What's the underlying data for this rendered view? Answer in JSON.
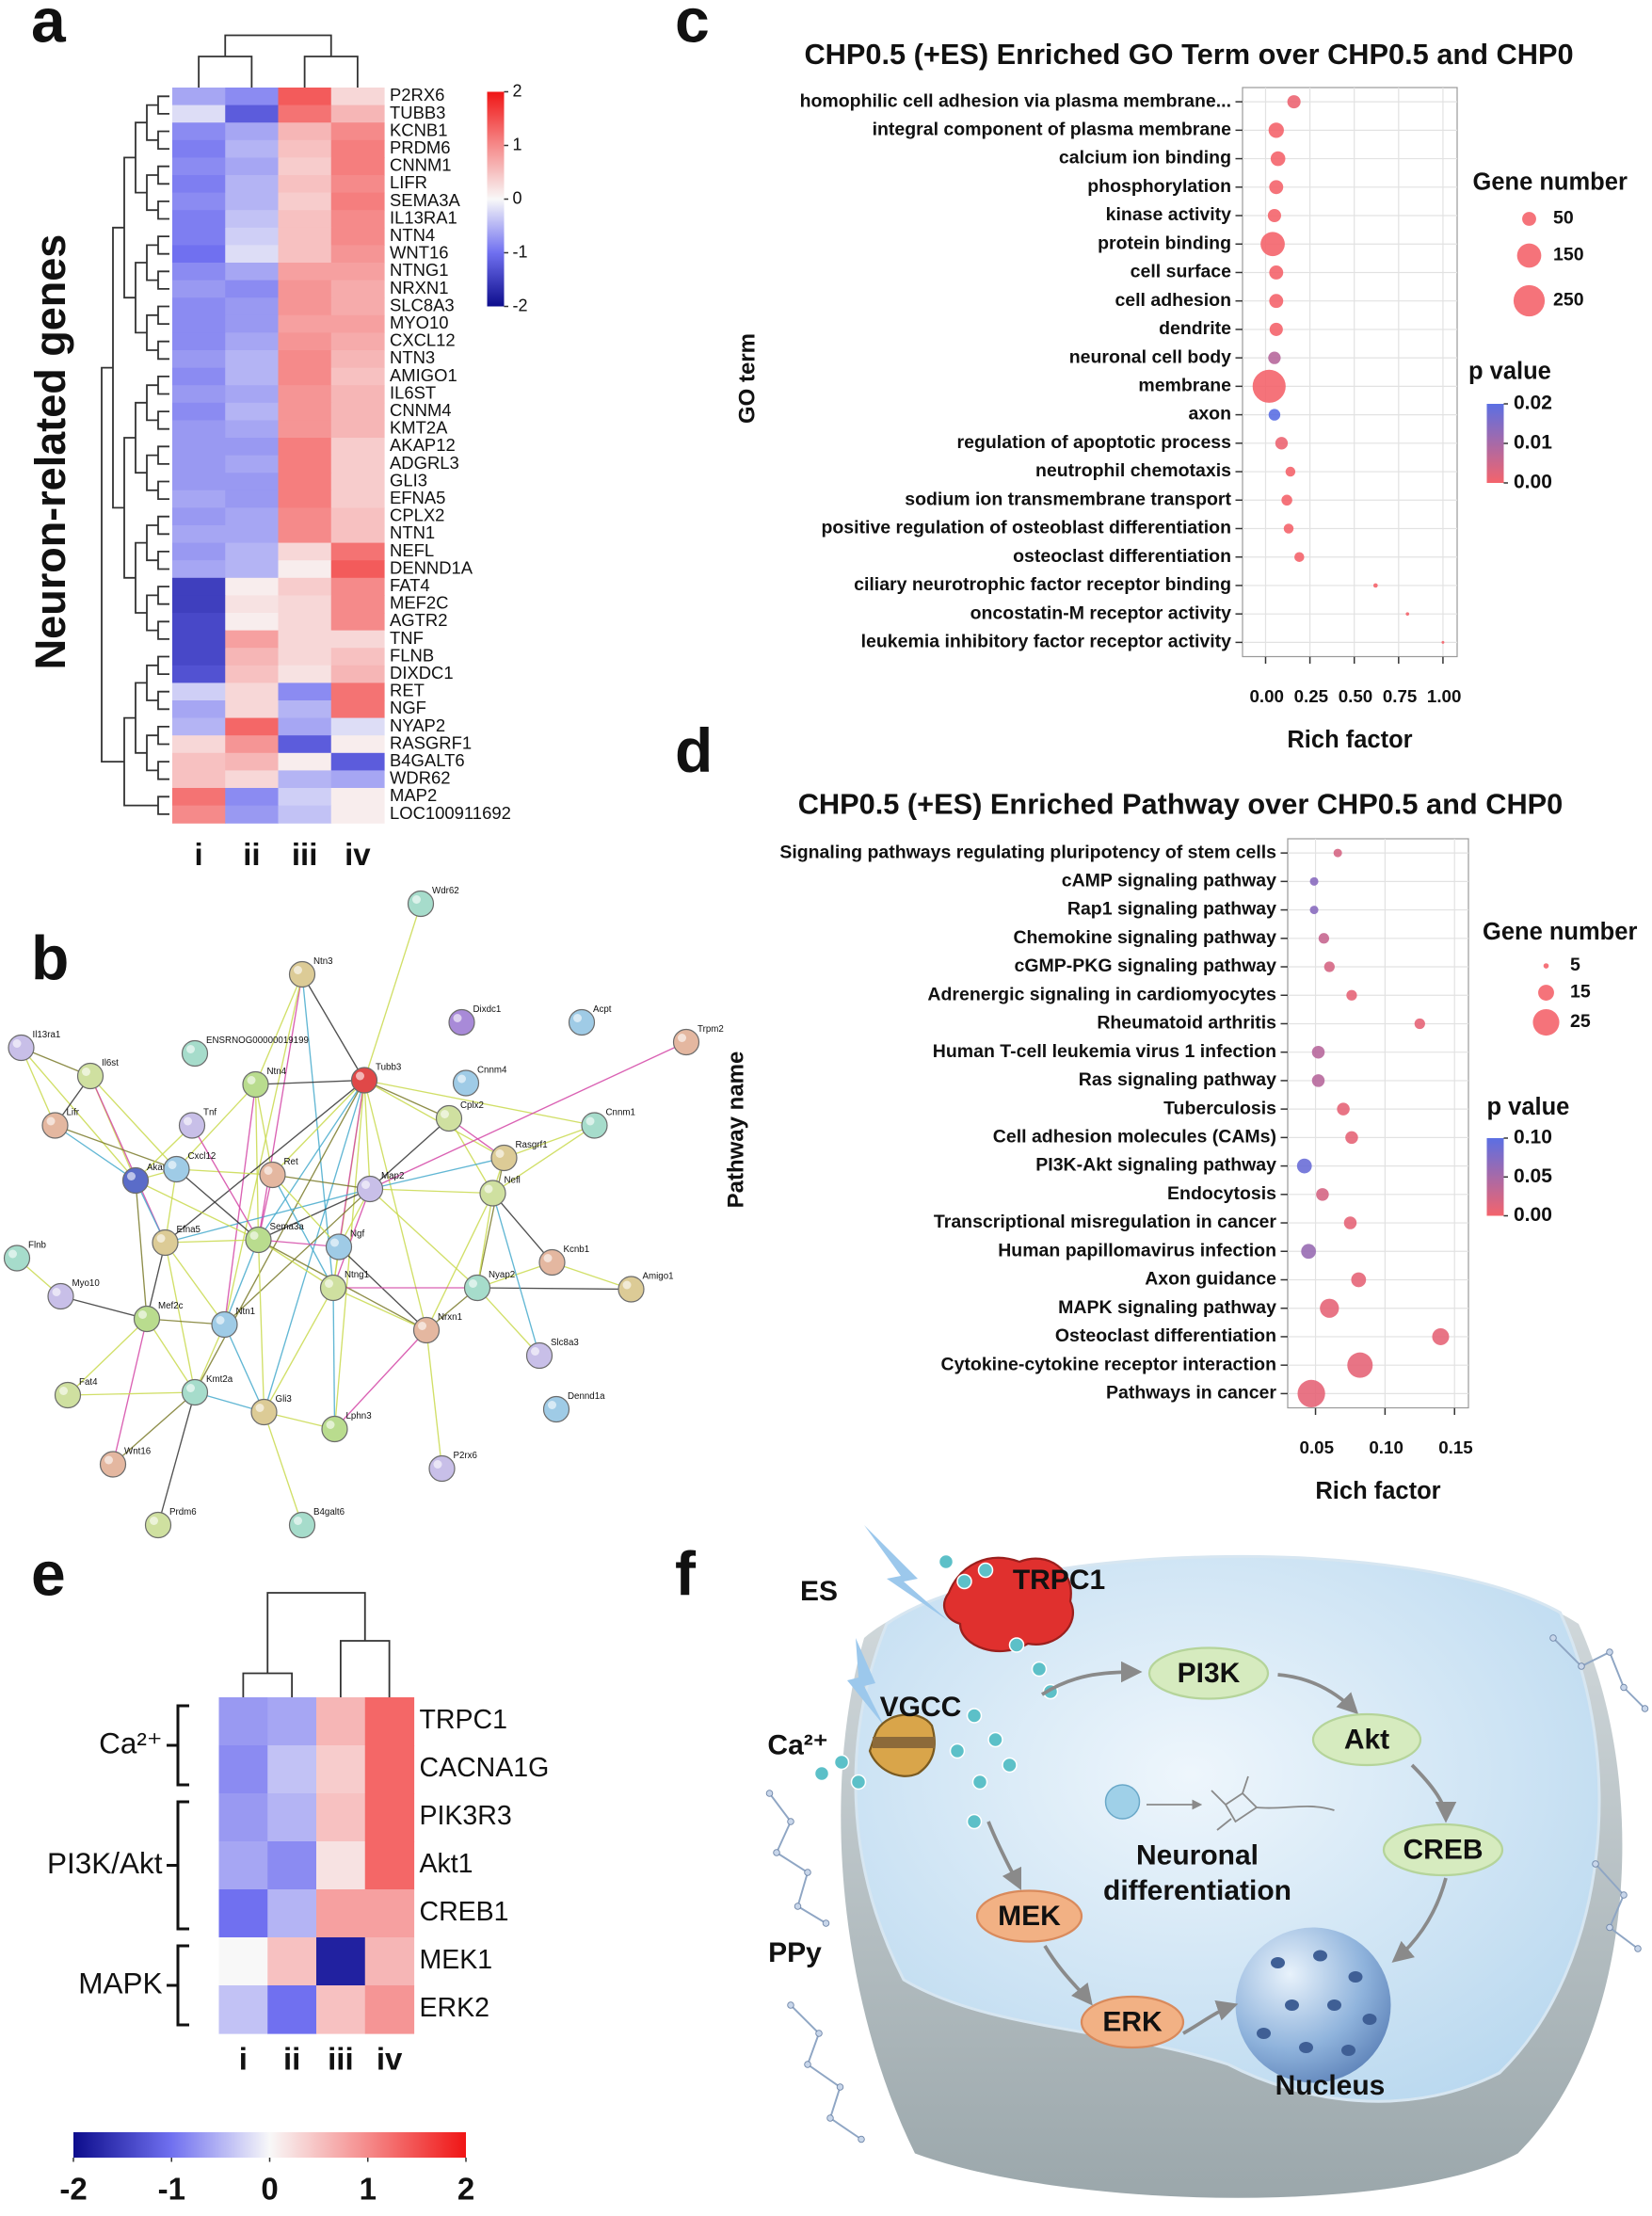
{
  "panel_labels": [
    "a",
    "b",
    "c",
    "d",
    "e",
    "f"
  ],
  "chart_data": [
    {
      "type": "heatmap",
      "ylabel": "Neuron-related genes",
      "categories": [
        "P2RX6",
        "TUBB3",
        "KCNB1",
        "PRDM6",
        "CNNM1",
        "LIFR",
        "SEMA3A",
        "IL13RA1",
        "NTN4",
        "WNT16",
        "NTNG1",
        "NRXN1",
        "SLC8A3",
        "MYO10",
        "CXCL12",
        "NTN3",
        "AMIGO1",
        "IL6ST",
        "CNNM4",
        "KMT2A",
        "AKAP12",
        "ADGRL3",
        "GLI3",
        "EFNA5",
        "CPLX2",
        "NTN1",
        "NEFL",
        "DENND1A",
        "FAT4",
        "MEF2C",
        "AGTR2",
        "TNF",
        "FLNB",
        "DIXDC1",
        "RET",
        "NGF",
        "NYAP2",
        "RASGRF1",
        "B4GALT6",
        "WDR62",
        "MAP2",
        "LOC100911692"
      ],
      "columns": [
        "i",
        "ii",
        "iii",
        "iv"
      ],
      "values": [
        [
          -0.6,
          -0.8,
          1.4,
          0.3
        ],
        [
          -0.2,
          -1.2,
          1.2,
          0.6
        ],
        [
          -0.8,
          -0.6,
          0.6,
          1.0
        ],
        [
          -0.9,
          -0.5,
          0.5,
          1.1
        ],
        [
          -0.8,
          -0.6,
          0.4,
          1.1
        ],
        [
          -0.9,
          -0.5,
          0.5,
          1.0
        ],
        [
          -0.8,
          -0.5,
          0.4,
          1.1
        ],
        [
          -0.9,
          -0.4,
          0.5,
          1.0
        ],
        [
          -0.9,
          -0.3,
          0.5,
          1.0
        ],
        [
          -1.0,
          -0.2,
          0.5,
          0.9
        ],
        [
          -0.8,
          -0.6,
          0.8,
          0.8
        ],
        [
          -0.7,
          -0.8,
          0.9,
          0.7
        ],
        [
          -0.8,
          -0.7,
          0.9,
          0.7
        ],
        [
          -0.8,
          -0.7,
          0.8,
          0.8
        ],
        [
          -0.8,
          -0.6,
          0.9,
          0.7
        ],
        [
          -0.7,
          -0.5,
          1.0,
          0.6
        ],
        [
          -0.8,
          -0.5,
          1.0,
          0.5
        ],
        [
          -0.7,
          -0.6,
          0.9,
          0.6
        ],
        [
          -0.8,
          -0.5,
          0.9,
          0.6
        ],
        [
          -0.7,
          -0.6,
          0.9,
          0.6
        ],
        [
          -0.7,
          -0.7,
          1.1,
          0.4
        ],
        [
          -0.7,
          -0.6,
          1.1,
          0.4
        ],
        [
          -0.7,
          -0.7,
          1.1,
          0.4
        ],
        [
          -0.6,
          -0.7,
          1.1,
          0.4
        ],
        [
          -0.7,
          -0.6,
          1.0,
          0.5
        ],
        [
          -0.6,
          -0.6,
          1.0,
          0.5
        ],
        [
          -0.7,
          -0.5,
          0.3,
          1.2
        ],
        [
          -0.6,
          -0.5,
          0.1,
          1.4
        ],
        [
          -1.5,
          0.1,
          0.4,
          1.0
        ],
        [
          -1.5,
          0.2,
          0.3,
          1.0
        ],
        [
          -1.4,
          0.1,
          0.3,
          1.0
        ],
        [
          -1.4,
          0.8,
          0.3,
          0.3
        ],
        [
          -1.4,
          0.6,
          0.3,
          0.5
        ],
        [
          -1.3,
          0.5,
          0.2,
          0.6
        ],
        [
          -0.3,
          0.3,
          -0.8,
          1.2
        ],
        [
          -0.6,
          0.3,
          -0.5,
          1.2
        ],
        [
          -0.5,
          1.3,
          -0.6,
          -0.2
        ],
        [
          0.3,
          0.9,
          -1.2,
          0.1
        ],
        [
          0.5,
          0.6,
          0.1,
          -1.2
        ],
        [
          0.5,
          0.3,
          -0.5,
          -0.6
        ],
        [
          1.2,
          -0.8,
          -0.3,
          0.1
        ],
        [
          1.0,
          -0.7,
          -0.4,
          0.1
        ]
      ],
      "zlim": [
        -2,
        2
      ],
      "zticks": [
        2,
        1,
        0,
        -1,
        -2
      ],
      "colors": [
        "#0d0d8c",
        "#7070f0",
        "#f8f8f8",
        "#f58a8a",
        "#f01515"
      ]
    },
    {
      "type": "dot",
      "title": "CHP0.5 (+ES) Enriched GO Term over CHP0.5 and CHP0",
      "xlabel": "Rich factor",
      "ylabel": "GO term",
      "categories": [
        "homophilic cell adhesion via plasma membrane...",
        "integral component of plasma membrane",
        "calcium ion binding",
        "phosphorylation",
        "kinase activity",
        "protein binding",
        "cell surface",
        "cell adhesion",
        "dendrite",
        "neuronal cell body",
        "membrane",
        "axon",
        "regulation of apoptotic process",
        "neutrophil chemotaxis",
        "sodium ion transmembrane transport",
        "positive regulation of osteoblast differentiation",
        "osteoclast differentiation",
        "ciliary neurotrophic factor receptor binding",
        "oncostatin-M receptor activity",
        "leukemia inhibitory factor receptor activity"
      ],
      "values": [
        0.16,
        0.06,
        0.07,
        0.06,
        0.05,
        0.04,
        0.06,
        0.06,
        0.06,
        0.05,
        0.02,
        0.05,
        0.09,
        0.14,
        0.12,
        0.13,
        0.19,
        0.62,
        0.8,
        1.0
      ],
      "sizes": [
        45,
        60,
        55,
        50,
        45,
        150,
        50,
        50,
        45,
        40,
        280,
        35,
        40,
        25,
        30,
        25,
        25,
        5,
        3,
        2
      ],
      "pvalues": [
        0.001,
        0,
        0,
        0,
        0,
        0,
        0,
        0,
        0,
        0.008,
        0,
        0.02,
        0.001,
        0,
        0,
        0,
        0,
        0,
        0,
        0
      ],
      "xlim": [
        -0.13,
        1.08
      ],
      "xticks": [
        {
          "value": 0,
          "label": "0.00"
        },
        0.25,
        {
          "value": 0.5,
          "label": "0.50"
        },
        0.75,
        {
          "value": 1,
          "label": "1.00"
        }
      ],
      "grid": true,
      "size_legend": {
        "title": "Gene number",
        "values": [
          50,
          150,
          250
        ]
      },
      "color_legend": {
        "title": "p value",
        "lim": [
          0,
          0.02
        ],
        "ticks": [
          0.02,
          0.01,
          {
            "value": 0,
            "label": "0.00"
          }
        ],
        "colors": [
          "#f4646c",
          "#5b6fe3"
        ]
      }
    },
    {
      "type": "dot",
      "title": "CHP0.5 (+ES) Enriched Pathway over CHP0.5 and CHP0",
      "xlabel": "Rich factor",
      "ylabel": "Pathway name",
      "categories": [
        "Signaling pathways regulating pluripotency of stem cells",
        "cAMP signaling pathway",
        "Rap1 signaling pathway",
        "Chemokine signaling pathway",
        "cGMP-PKG signaling pathway",
        "Adrenergic signaling in cardiomyocytes",
        "Rheumatoid arthritis",
        "Human T-cell leukemia virus 1 infection",
        "Ras signaling pathway",
        "Tuberculosis",
        "Cell adhesion molecules (CAMs)",
        "PI3K-Akt signaling pathway",
        "Endocytosis",
        "Transcriptional misregulation in cancer",
        "Human papillomavirus infection",
        "Axon guidance",
        "MAPK signaling pathway",
        "Osteoclast differentiation",
        "Cytokine-cytokine receptor interaction",
        "Pathways in cancer"
      ],
      "values": [
        0.066,
        0.049,
        0.049,
        0.056,
        0.06,
        0.076,
        0.125,
        0.052,
        0.052,
        0.07,
        0.076,
        0.042,
        0.055,
        0.075,
        0.045,
        0.081,
        0.06,
        0.14,
        0.082,
        0.047
      ],
      "sizes": [
        8,
        8,
        8,
        10,
        10,
        10,
        10,
        12,
        12,
        12,
        12,
        14,
        12,
        12,
        14,
        14,
        18,
        16,
        24,
        26
      ],
      "pvalues": [
        0.02,
        0.07,
        0.07,
        0.03,
        0.02,
        0.01,
        0.01,
        0.04,
        0.04,
        0.01,
        0.01,
        0.09,
        0.02,
        0.01,
        0.06,
        0.01,
        0.01,
        0.01,
        0.01,
        0.01
      ],
      "xlim": [
        0.03,
        0.16
      ],
      "xticks": [
        0.05,
        {
          "value": 0.1,
          "label": "0.10"
        },
        0.15
      ],
      "grid": true,
      "size_legend": {
        "title": "Gene number",
        "values": [
          5,
          15,
          25
        ]
      },
      "color_legend": {
        "title": "p value",
        "lim": [
          0,
          0.1
        ],
        "ticks": [
          {
            "value": 0.1,
            "label": "0.10"
          },
          0.05,
          {
            "value": 0,
            "label": "0.00"
          }
        ],
        "colors": [
          "#f4646c",
          "#5b6fe3"
        ]
      }
    },
    {
      "type": "heatmap",
      "categories": [
        "TRPC1",
        "CACNA1G",
        "PIK3R3",
        "Akt1",
        "CREB1",
        "MEK1",
        "ERK2"
      ],
      "columns": [
        "i",
        "ii",
        "iii",
        "iv"
      ],
      "row_groups": [
        "Ca²⁺",
        "PI3K/Akt",
        "MAPK"
      ],
      "values": [
        [
          -0.7,
          -0.6,
          0.6,
          1.3
        ],
        [
          -0.8,
          -0.4,
          0.4,
          1.3
        ],
        [
          -0.7,
          -0.5,
          0.5,
          1.3
        ],
        [
          -0.6,
          -0.8,
          0.2,
          1.3
        ],
        [
          -1.0,
          -0.5,
          0.8,
          0.8
        ],
        [
          0,
          0.5,
          -1.8,
          0.6
        ],
        [
          -0.4,
          -1.0,
          0.5,
          0.9
        ]
      ],
      "zlim": [
        -2,
        2
      ],
      "zticks": [
        -2,
        -1,
        0,
        1,
        2
      ],
      "colors": [
        "#0d0d8c",
        "#7070f0",
        "#f8f8f8",
        "#f58a8a",
        "#f01515"
      ]
    }
  ],
  "network": {
    "nodes": [
      "Wdr62",
      "Ntn3",
      "Dixdc1",
      "Acpt",
      "Trpm2",
      "Il13ra1",
      "Il6st",
      "ENSRNOG00000019199",
      "Tubb3",
      "Ntn4",
      "Cnnm4",
      "Lifr",
      "Tnf",
      "Cplx2",
      "Cnnm1",
      "Rasgrf1",
      "Akap12",
      "Cxcl12",
      "Ret",
      "Map2",
      "Nefl",
      "Flnb",
      "Efna5",
      "Sema3a",
      "Ngf",
      "Kcnb1",
      "Myo10",
      "Ntng1",
      "Nyap2",
      "Amigo1",
      "Mef2c",
      "Ntn1",
      "Nrxn1",
      "Slc8a3",
      "Fat4",
      "Kmt2a",
      "Gli3",
      "Lphn3",
      "Dennd1a",
      "Wnt16",
      "P2rx6",
      "Prdm6",
      "B4galt6"
    ]
  },
  "diagram": {
    "es": "ES",
    "trpc1": "TRPC1",
    "vgcc": "VGCC",
    "calcium": "Ca²⁺",
    "ppy": "PPy",
    "pi3k": "PI3K",
    "akt": "Akt",
    "creb": "CREB",
    "mek": "MEK",
    "erk": "ERK",
    "neuronal": [
      "Neuronal",
      "differentiation"
    ],
    "nucleus": "Nucleus"
  }
}
